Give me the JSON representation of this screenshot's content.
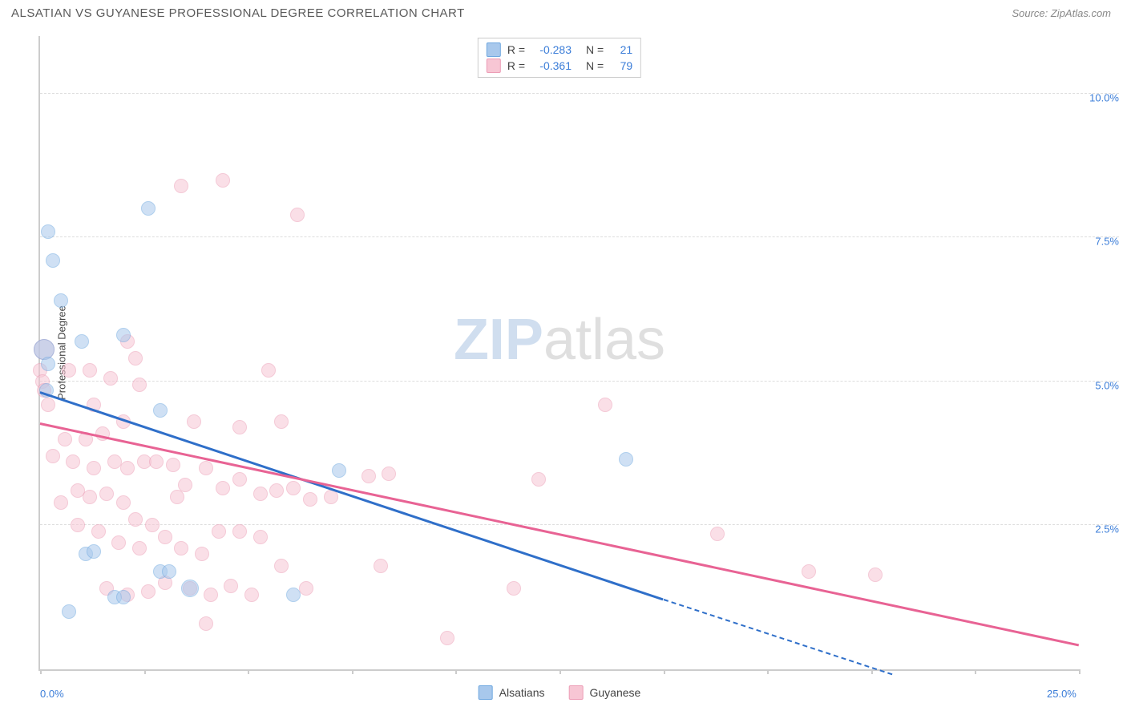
{
  "header": {
    "title": "ALSATIAN VS GUYANESE PROFESSIONAL DEGREE CORRELATION CHART",
    "source": "Source: ZipAtlas.com"
  },
  "ylabel": "Professional Degree",
  "watermark": {
    "bold": "ZIP",
    "rest": "atlas"
  },
  "axes": {
    "xmin": 0,
    "xmax": 25,
    "ymin": 0,
    "ymax": 11,
    "yticks": [
      {
        "v": 2.5,
        "label": "2.5%"
      },
      {
        "v": 5.0,
        "label": "5.0%"
      },
      {
        "v": 7.5,
        "label": "7.5%"
      },
      {
        "v": 10.0,
        "label": "10.0%"
      }
    ],
    "xticks_minor": [
      0,
      2.5,
      5,
      7.5,
      10,
      12.5,
      15,
      17.5,
      20,
      22.5,
      25
    ],
    "xlabels": [
      {
        "v": 0,
        "label": "0.0%"
      },
      {
        "v": 25,
        "label": "25.0%"
      }
    ]
  },
  "colors": {
    "blue_fill": "#a8c8ec",
    "blue_border": "#6fa8e0",
    "blue_line": "#2f6fc9",
    "pink_fill": "#f7c6d4",
    "pink_border": "#ec9db6",
    "pink_line": "#e86394",
    "grid": "#dddddd",
    "axis": "#cccccc",
    "tick_text": "#3b7dd8"
  },
  "legend_top": [
    {
      "color": "blue",
      "R": "-0.283",
      "N": "21"
    },
    {
      "color": "pink",
      "R": "-0.361",
      "N": "79"
    }
  ],
  "legend_bottom": [
    {
      "color": "blue",
      "label": "Alsatians"
    },
    {
      "color": "pink",
      "label": "Guyanese"
    }
  ],
  "series": {
    "blue": {
      "trend": {
        "x1": 0,
        "y1": 4.8,
        "x2": 15,
        "y2": 1.2,
        "dash_to_x": 20.5,
        "dash_to_y": -0.1
      },
      "points": [
        {
          "x": 0.2,
          "y": 7.6
        },
        {
          "x": 0.3,
          "y": 7.1
        },
        {
          "x": 0.5,
          "y": 6.4
        },
        {
          "x": 1.0,
          "y": 5.7
        },
        {
          "x": 0.1,
          "y": 5.55,
          "r": 13
        },
        {
          "x": 0.2,
          "y": 5.3
        },
        {
          "x": 2.0,
          "y": 5.8
        },
        {
          "x": 2.6,
          "y": 8.0
        },
        {
          "x": 1.1,
          "y": 2.0
        },
        {
          "x": 1.8,
          "y": 1.25
        },
        {
          "x": 2.0,
          "y": 1.25
        },
        {
          "x": 2.9,
          "y": 1.7
        },
        {
          "x": 0.7,
          "y": 1.0
        },
        {
          "x": 3.1,
          "y": 1.7
        },
        {
          "x": 2.9,
          "y": 4.5
        },
        {
          "x": 6.1,
          "y": 1.3
        },
        {
          "x": 0.15,
          "y": 4.85
        },
        {
          "x": 14.1,
          "y": 3.65
        },
        {
          "x": 7.2,
          "y": 3.45
        },
        {
          "x": 1.3,
          "y": 2.05
        },
        {
          "x": 3.6,
          "y": 1.4,
          "r": 11
        }
      ]
    },
    "pink": {
      "trend": {
        "x1": 0,
        "y1": 4.25,
        "x2": 25,
        "y2": 0.4
      },
      "points": [
        {
          "x": 0.0,
          "y": 5.2
        },
        {
          "x": 0.05,
          "y": 5.0
        },
        {
          "x": 0.1,
          "y": 4.85
        },
        {
          "x": 0.2,
          "y": 4.6
        },
        {
          "x": 0.1,
          "y": 5.55,
          "r": 13
        },
        {
          "x": 0.7,
          "y": 5.2
        },
        {
          "x": 1.2,
          "y": 5.2
        },
        {
          "x": 1.7,
          "y": 5.05
        },
        {
          "x": 2.3,
          "y": 5.4
        },
        {
          "x": 2.1,
          "y": 5.7
        },
        {
          "x": 2.4,
          "y": 4.95
        },
        {
          "x": 3.4,
          "y": 8.4
        },
        {
          "x": 4.4,
          "y": 8.5
        },
        {
          "x": 6.2,
          "y": 7.9
        },
        {
          "x": 5.5,
          "y": 5.2
        },
        {
          "x": 5.8,
          "y": 4.3
        },
        {
          "x": 4.8,
          "y": 4.2
        },
        {
          "x": 3.7,
          "y": 4.3
        },
        {
          "x": 0.6,
          "y": 4.0
        },
        {
          "x": 1.1,
          "y": 4.0
        },
        {
          "x": 1.5,
          "y": 4.1
        },
        {
          "x": 0.3,
          "y": 3.7
        },
        {
          "x": 0.8,
          "y": 3.6
        },
        {
          "x": 1.3,
          "y": 3.5
        },
        {
          "x": 1.8,
          "y": 3.6
        },
        {
          "x": 2.1,
          "y": 3.5
        },
        {
          "x": 2.5,
          "y": 3.6
        },
        {
          "x": 2.8,
          "y": 3.6
        },
        {
          "x": 3.2,
          "y": 3.55
        },
        {
          "x": 3.5,
          "y": 3.2
        },
        {
          "x": 4.0,
          "y": 3.5
        },
        {
          "x": 4.4,
          "y": 3.15
        },
        {
          "x": 4.8,
          "y": 3.3
        },
        {
          "x": 5.3,
          "y": 3.05
        },
        {
          "x": 5.7,
          "y": 3.1
        },
        {
          "x": 6.1,
          "y": 3.15
        },
        {
          "x": 6.5,
          "y": 2.95
        },
        {
          "x": 7.0,
          "y": 3.0
        },
        {
          "x": 7.9,
          "y": 3.35
        },
        {
          "x": 8.4,
          "y": 3.4
        },
        {
          "x": 8.2,
          "y": 1.8
        },
        {
          "x": 0.9,
          "y": 3.1
        },
        {
          "x": 1.2,
          "y": 3.0
        },
        {
          "x": 1.6,
          "y": 3.05
        },
        {
          "x": 2.0,
          "y": 2.9
        },
        {
          "x": 2.3,
          "y": 2.6
        },
        {
          "x": 2.7,
          "y": 2.5
        },
        {
          "x": 1.4,
          "y": 2.4
        },
        {
          "x": 1.9,
          "y": 2.2
        },
        {
          "x": 2.4,
          "y": 2.1
        },
        {
          "x": 3.0,
          "y": 2.3
        },
        {
          "x": 3.4,
          "y": 2.1
        },
        {
          "x": 3.9,
          "y": 2.0
        },
        {
          "x": 4.3,
          "y": 2.4
        },
        {
          "x": 4.8,
          "y": 2.4
        },
        {
          "x": 5.3,
          "y": 2.3
        },
        {
          "x": 5.8,
          "y": 1.8
        },
        {
          "x": 6.4,
          "y": 1.4
        },
        {
          "x": 3.0,
          "y": 1.5
        },
        {
          "x": 3.6,
          "y": 1.4
        },
        {
          "x": 4.1,
          "y": 1.3
        },
        {
          "x": 4.6,
          "y": 1.45
        },
        {
          "x": 5.1,
          "y": 1.3
        },
        {
          "x": 2.1,
          "y": 1.3
        },
        {
          "x": 2.6,
          "y": 1.35
        },
        {
          "x": 1.6,
          "y": 1.4
        },
        {
          "x": 4.0,
          "y": 0.8
        },
        {
          "x": 9.8,
          "y": 0.55
        },
        {
          "x": 11.4,
          "y": 1.4
        },
        {
          "x": 12.0,
          "y": 3.3
        },
        {
          "x": 13.6,
          "y": 4.6
        },
        {
          "x": 16.3,
          "y": 2.35
        },
        {
          "x": 18.5,
          "y": 1.7
        },
        {
          "x": 20.1,
          "y": 1.65
        },
        {
          "x": 0.5,
          "y": 2.9
        },
        {
          "x": 0.9,
          "y": 2.5
        },
        {
          "x": 3.3,
          "y": 3.0
        },
        {
          "x": 2.0,
          "y": 4.3
        },
        {
          "x": 1.3,
          "y": 4.6
        }
      ]
    }
  }
}
